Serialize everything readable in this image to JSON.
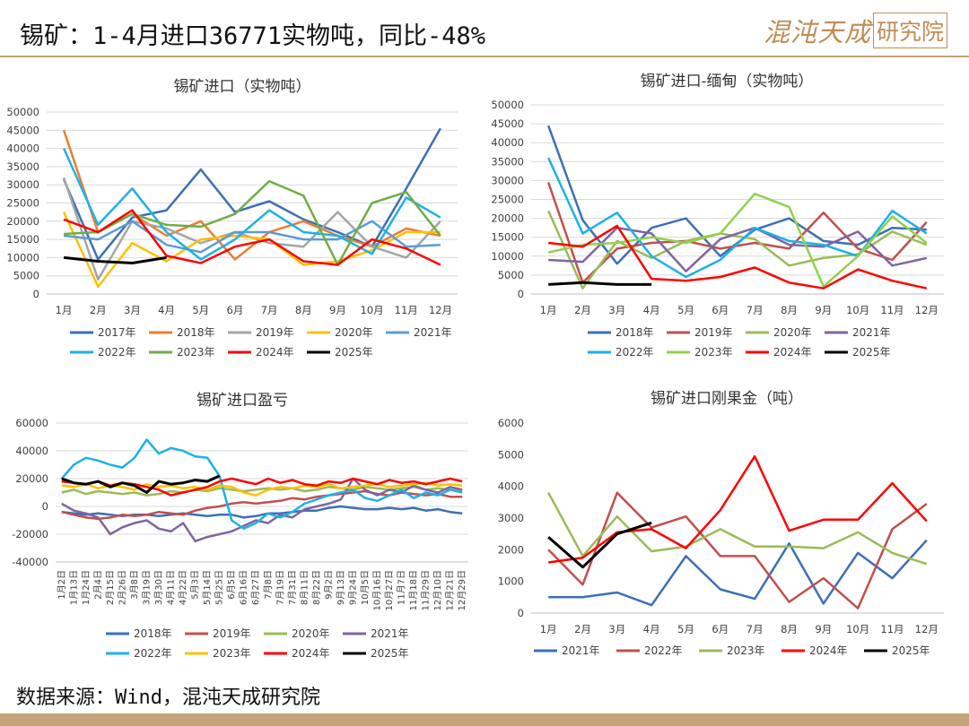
{
  "header": {
    "title": "锡矿：1-4月进口36771实物吨，同比-48%"
  },
  "logo": {
    "main": "混沌天成",
    "box": "研究院"
  },
  "footer": {
    "source": "数据来源：Wind，混沌天成研究院"
  },
  "colors": {
    "accent": "#c4a27a"
  },
  "chart_data": [
    {
      "id": "c1",
      "type": "line",
      "title": "锡矿进口（实物吨）",
      "categories": [
        "1月",
        "2月",
        "3月",
        "4月",
        "5月",
        "6月",
        "7月",
        "8月",
        "9月",
        "10月",
        "11月",
        "12月"
      ],
      "ylim": [
        0,
        50000
      ],
      "yticks": [
        0,
        5000,
        10000,
        15000,
        20000,
        25000,
        30000,
        35000,
        40000,
        45000,
        50000
      ],
      "grid": true,
      "legend": "bottom",
      "series": [
        {
          "name": "2017年",
          "color": "#3d6fb6",
          "values": [
            31500,
            9500,
            21000,
            23000,
            34200,
            22500,
            25500,
            20500,
            17000,
            13000,
            29000,
            45500
          ]
        },
        {
          "name": "2018年",
          "color": "#ed7d31",
          "values": [
            45000,
            17000,
            22000,
            16000,
            20000,
            9500,
            17000,
            20000,
            16000,
            13000,
            18000,
            16000
          ]
        },
        {
          "name": "2019年",
          "color": "#a5a5a5",
          "values": [
            32000,
            4000,
            20000,
            18000,
            14000,
            17000,
            14000,
            13000,
            22500,
            13000,
            10000,
            20000
          ]
        },
        {
          "name": "2020年",
          "color": "#ffc000",
          "values": [
            22500,
            2000,
            14000,
            9000,
            15000,
            16000,
            15000,
            8000,
            9000,
            12000,
            17000,
            17000
          ]
        },
        {
          "name": "2021年",
          "color": "#5b9bd5",
          "values": [
            16000,
            15000,
            20000,
            13500,
            11500,
            17000,
            17000,
            15000,
            15000,
            20000,
            13000,
            13500
          ]
        },
        {
          "name": "2022年",
          "color": "#1eb1e6",
          "values": [
            40000,
            19000,
            29000,
            17000,
            9500,
            15000,
            23000,
            17000,
            16000,
            11000,
            26500,
            21000
          ]
        },
        {
          "name": "2023年",
          "color": "#70ad47",
          "values": [
            16500,
            17000,
            22000,
            19000,
            18500,
            22000,
            31000,
            27000,
            8000,
            25000,
            28000,
            16000
          ]
        },
        {
          "name": "2024年",
          "color": "#ff0000",
          "values": [
            20500,
            17000,
            23000,
            10500,
            8500,
            13000,
            15000,
            9000,
            8000,
            15000,
            12500,
            8000
          ]
        },
        {
          "name": "2025年",
          "color": "#000000",
          "values": [
            10000,
            9000,
            8500,
            10000,
            null,
            null,
            null,
            null,
            null,
            null,
            null,
            null
          ]
        }
      ]
    },
    {
      "id": "c2",
      "type": "line",
      "title": "锡矿进口-缅甸（实物吨）",
      "categories": [
        "1月",
        "2月",
        "3月",
        "4月",
        "5月",
        "6月",
        "7月",
        "8月",
        "9月",
        "10月",
        "11月",
        "12月"
      ],
      "ylim": [
        0,
        50000
      ],
      "yticks": [
        0,
        5000,
        10000,
        15000,
        20000,
        25000,
        30000,
        35000,
        40000,
        45000,
        50000
      ],
      "grid": true,
      "legend": "bottom",
      "series": [
        {
          "name": "2018年",
          "color": "#3d6fb6",
          "values": [
            44500,
            19500,
            8000,
            17500,
            20000,
            10000,
            17000,
            20000,
            14000,
            13000,
            17500,
            17000
          ]
        },
        {
          "name": "2019年",
          "color": "#c0504d",
          "values": [
            29500,
            3000,
            12000,
            13500,
            14000,
            12000,
            13500,
            12000,
            21500,
            12000,
            9000,
            19000
          ]
        },
        {
          "name": "2020年",
          "color": "#9bbb59",
          "values": [
            22000,
            1500,
            14000,
            9500,
            14000,
            16000,
            14500,
            7500,
            9500,
            10500,
            16500,
            13000
          ]
        },
        {
          "name": "2021年",
          "color": "#8064a2",
          "values": [
            9000,
            8500,
            17500,
            16000,
            6000,
            14500,
            17500,
            13000,
            12500,
            16500,
            7500,
            9500
          ]
        },
        {
          "name": "2022年",
          "color": "#1eb1e6",
          "values": [
            36000,
            16000,
            21500,
            10000,
            4500,
            9000,
            17500,
            14000,
            13000,
            10000,
            22000,
            16000
          ]
        },
        {
          "name": "2023年",
          "color": "#92d050",
          "values": [
            11000,
            13000,
            13500,
            15000,
            13500,
            16000,
            26500,
            23000,
            2000,
            10000,
            20500,
            13500
          ]
        },
        {
          "name": "2024年",
          "color": "#ff0000",
          "values": [
            13500,
            12500,
            18000,
            4000,
            3500,
            4500,
            7000,
            3000,
            1500,
            6500,
            3500,
            1500
          ]
        },
        {
          "name": "2025年",
          "color": "#000000",
          "values": [
            2500,
            3000,
            2500,
            2500,
            null,
            null,
            null,
            null,
            null,
            null,
            null,
            null
          ]
        }
      ]
    },
    {
      "id": "c3",
      "type": "line",
      "title": "锡矿进口盈亏",
      "categories": [
        "1月2日",
        "1月13日",
        "1月24日",
        "2月4日",
        "2月15日",
        "2月26日",
        "3月8日",
        "3月19日",
        "3月30日",
        "4月11日",
        "4月22日",
        "5月3日",
        "5月14日",
        "5月25日",
        "6月5日",
        "6月16日",
        "6月27日",
        "7月8日",
        "7月19日",
        "7月31日",
        "8月11日",
        "8月22日",
        "9月2日",
        "9月13日",
        "9月24日",
        "10月5日",
        "10月16日",
        "10月27日",
        "11月7日",
        "11月18日",
        "11月29日",
        "12月10日",
        "12月21日",
        "12月29日"
      ],
      "ylim": [
        -40000,
        60000
      ],
      "yticks": [
        -40000,
        -20000,
        0,
        20000,
        40000,
        60000
      ],
      "grid": true,
      "legend": "bottom",
      "series": [
        {
          "name": "2018年",
          "color": "#3d6fb6",
          "values": [
            -4000,
            -5000,
            -6000,
            -5000,
            -6000,
            -7000,
            -6000,
            -6000,
            -7000,
            -6000,
            -5000,
            -6000,
            -7000,
            -6000,
            -6000,
            -8000,
            -7000,
            -5000,
            -5000,
            -4000,
            -3000,
            -3000,
            -1000,
            0,
            -1000,
            -2000,
            -2000,
            -1000,
            -2000,
            -1000,
            -3000,
            -2000,
            -4000,
            -5000
          ]
        },
        {
          "name": "2019年",
          "color": "#c0504d",
          "values": [
            -4000,
            -6000,
            -8000,
            -9000,
            -8000,
            -6000,
            -7000,
            -6000,
            -4000,
            -5000,
            -6000,
            -3000,
            -1000,
            0,
            2000,
            3000,
            2000,
            3000,
            4000,
            6000,
            5000,
            7000,
            8000,
            9000,
            10000,
            11000,
            9000,
            8000,
            10000,
            9000,
            8000,
            9000,
            7000,
            7000
          ]
        },
        {
          "name": "2020年",
          "color": "#9bbb59",
          "values": [
            10000,
            12000,
            9000,
            11000,
            10000,
            9000,
            10000,
            8000,
            9000,
            11000,
            10000,
            12000,
            11000,
            13000,
            12000,
            11000,
            12000,
            13000,
            12000,
            13000,
            11000,
            12000,
            14000,
            13000,
            12000,
            14000,
            13000,
            12000,
            13000,
            14000,
            12000,
            13000,
            12000,
            11000
          ]
        },
        {
          "name": "2021年",
          "color": "#8064a2",
          "values": [
            2000,
            -3000,
            -5000,
            -8000,
            -20000,
            -15000,
            -12000,
            -10000,
            -16000,
            -18000,
            -12000,
            -25000,
            -22000,
            -20000,
            -18000,
            -14000,
            -10000,
            -12000,
            -6000,
            -8000,
            -2000,
            0,
            2000,
            5000,
            20000,
            12000,
            8000,
            12000,
            10000,
            15000,
            12000,
            10000,
            14000,
            12000
          ]
        },
        {
          "name": "2022年",
          "color": "#1eb1e6",
          "values": [
            20000,
            30000,
            35000,
            33000,
            30000,
            28000,
            35000,
            48000,
            38000,
            42000,
            40000,
            36000,
            35000,
            22000,
            -10000,
            -16000,
            -12000,
            -5000,
            -8000,
            -4000,
            2000,
            5000,
            8000,
            10000,
            12000,
            6000,
            4000,
            8000,
            12000,
            6000,
            10000,
            8000,
            12000,
            10000
          ]
        },
        {
          "name": "2023年",
          "color": "#ffc000",
          "values": [
            15000,
            14000,
            16000,
            13000,
            15000,
            14000,
            12000,
            16000,
            14000,
            15000,
            13000,
            14000,
            12000,
            15000,
            14000,
            10000,
            8000,
            12000,
            14000,
            13000,
            15000,
            14000,
            16000,
            13000,
            14000,
            15000,
            16000,
            14000,
            15000,
            16000,
            17000,
            15000,
            16000,
            15000
          ]
        },
        {
          "name": "2024年",
          "color": "#ff0000",
          "values": [
            18000,
            17000,
            16000,
            18000,
            15000,
            17000,
            16000,
            14000,
            12000,
            8000,
            10000,
            12000,
            14000,
            18000,
            20000,
            18000,
            16000,
            20000,
            17000,
            19000,
            16000,
            15000,
            18000,
            17000,
            20000,
            18000,
            16000,
            19000,
            17000,
            18000,
            16000,
            18000,
            20000,
            18000
          ]
        },
        {
          "name": "2025年",
          "color": "#000000",
          "values": [
            20000,
            17000,
            16000,
            18000,
            14000,
            17000,
            15000,
            10000,
            18000,
            16000,
            17000,
            19000,
            18000,
            22000,
            null,
            null,
            null,
            null,
            null,
            null,
            null,
            null,
            null,
            null,
            null,
            null,
            null,
            null,
            null,
            null,
            null,
            null,
            null,
            null
          ]
        }
      ]
    },
    {
      "id": "c4",
      "type": "line",
      "title": "锡矿进口刚果金（吨）",
      "categories": [
        "1月",
        "2月",
        "3月",
        "4月",
        "5月",
        "6月",
        "7月",
        "8月",
        "9月",
        "10月",
        "11月",
        "12月"
      ],
      "ylim": [
        0,
        6000
      ],
      "yticks": [
        0,
        1000,
        2000,
        3000,
        4000,
        5000,
        6000
      ],
      "grid": false,
      "legend": "bottom",
      "series": [
        {
          "name": "2021年",
          "color": "#3d6fb6",
          "values": [
            500,
            500,
            650,
            250,
            1800,
            750,
            450,
            2200,
            300,
            1900,
            1100,
            2300
          ]
        },
        {
          "name": "2022年",
          "color": "#c0504d",
          "values": [
            2000,
            900,
            3800,
            2700,
            3050,
            1800,
            1800,
            350,
            1100,
            150,
            2650,
            3450
          ]
        },
        {
          "name": "2023年",
          "color": "#9bbb59",
          "values": [
            3800,
            1800,
            3050,
            1950,
            2100,
            2650,
            2100,
            2100,
            2050,
            2550,
            1900,
            1550
          ]
        },
        {
          "name": "2024年",
          "color": "#ff0000",
          "values": [
            1600,
            1750,
            2550,
            2650,
            2050,
            3250,
            4950,
            2600,
            2950,
            2950,
            4100,
            2900
          ]
        },
        {
          "name": "2025年",
          "color": "#000000",
          "values": [
            2400,
            1450,
            2500,
            2850,
            null,
            null,
            null,
            null,
            null,
            null,
            null,
            null
          ]
        }
      ]
    }
  ]
}
